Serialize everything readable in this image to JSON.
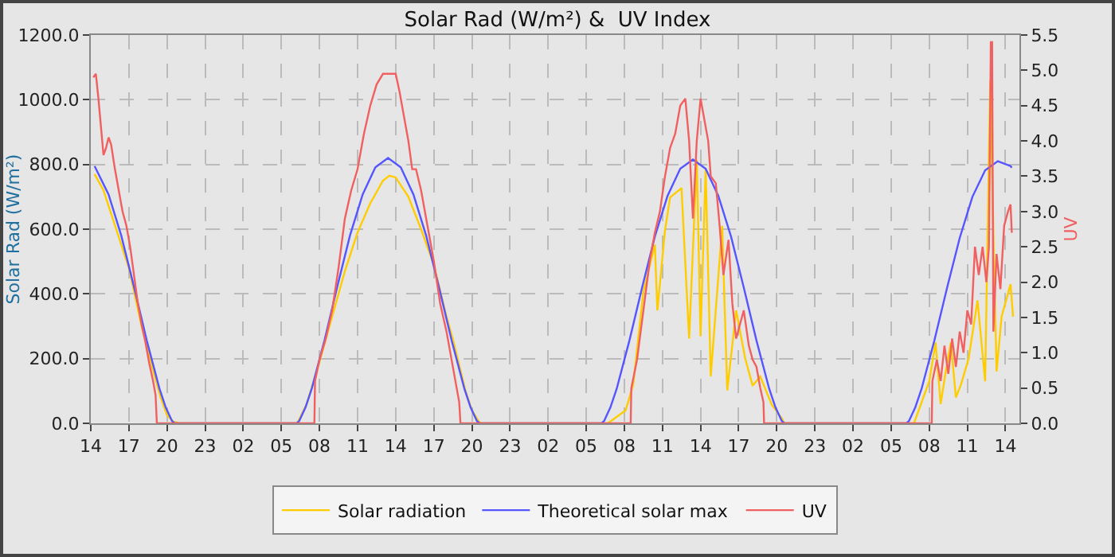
{
  "chart_data": {
    "type": "line",
    "title": "Solar Rad (W/m²) &  UV Index",
    "ylabel": "Solar Rad (W/m²)",
    "y2label": "UV",
    "xlim": [
      "--01-01T14:00",
      "--01-04T15:06"
    ],
    "xticks": [
      {
        "value": "--01-01T14:00",
        "label": "14"
      },
      {
        "value": "--01-01T17:00",
        "label": "17"
      },
      {
        "value": "--01-01T20:00",
        "label": "20"
      },
      {
        "value": "--01-01T23:00",
        "label": "23"
      },
      {
        "value": "--01-02T02:00",
        "label": "02"
      },
      {
        "value": "--01-02T05:00",
        "label": "05"
      },
      {
        "value": "--01-02T08:00",
        "label": "08"
      },
      {
        "value": "--01-02T11:00",
        "label": "11"
      },
      {
        "value": "--01-02T14:00",
        "label": "14"
      },
      {
        "value": "--01-02T17:00",
        "label": "17"
      },
      {
        "value": "--01-02T20:00",
        "label": "20"
      },
      {
        "value": "--01-02T23:00",
        "label": "23"
      },
      {
        "value": "--01-03T02:00",
        "label": "02"
      },
      {
        "value": "--01-03T05:00",
        "label": "05"
      },
      {
        "value": "--01-03T08:00",
        "label": "08"
      },
      {
        "value": "--01-03T11:00",
        "label": "11"
      },
      {
        "value": "--01-03T14:00",
        "label": "14"
      },
      {
        "value": "--01-03T17:00",
        "label": "17"
      },
      {
        "value": "--01-03T20:00",
        "label": "20"
      },
      {
        "value": "--01-03T23:00",
        "label": "23"
      },
      {
        "value": "--01-04T02:00",
        "label": "02"
      },
      {
        "value": "--01-04T05:00",
        "label": "05"
      },
      {
        "value": "--01-04T08:00",
        "label": "08"
      },
      {
        "value": "--01-04T11:00",
        "label": "11"
      },
      {
        "value": "--01-04T14:00",
        "label": "14"
      }
    ],
    "ylim": [
      0,
      1200
    ],
    "yticks": [
      {
        "value": 0,
        "label": "0.0"
      },
      {
        "value": 200,
        "label": "200.0"
      },
      {
        "value": 400,
        "label": "400.0"
      },
      {
        "value": 600,
        "label": "600.0"
      },
      {
        "value": 800,
        "label": "800.0"
      },
      {
        "value": 1000,
        "label": "1000.0"
      },
      {
        "value": 1200,
        "label": "1200.0"
      }
    ],
    "y2lim": [
      0,
      5.5
    ],
    "y2ticks": [
      {
        "value": 0,
        "label": "0.0"
      },
      {
        "value": 0.5,
        "label": "0.5"
      },
      {
        "value": 1,
        "label": "1.0"
      },
      {
        "value": 1.5,
        "label": "1.5"
      },
      {
        "value": 2,
        "label": "2.0"
      },
      {
        "value": 2.5,
        "label": "2.5"
      },
      {
        "value": 3,
        "label": "3.0"
      },
      {
        "value": 3.5,
        "label": "3.5"
      },
      {
        "value": 4,
        "label": "4.0"
      },
      {
        "value": 4.5,
        "label": "4.5"
      },
      {
        "value": 5,
        "label": "5.0"
      },
      {
        "value": 5.5,
        "label": "5.5"
      }
    ],
    "grid": true,
    "legend": "bottom",
    "series": [
      {
        "name": "Solar radiation",
        "color": "#ffcc00",
        "x": [
          "--01-01T14:18",
          "--01-01T15:00",
          "--01-01T16:00",
          "--01-01T17:00",
          "--01-01T18:00",
          "--01-01T19:00",
          "--01-01T19:30",
          "--01-01T20:00",
          "--01-01T20:30",
          "--01-01T21:00",
          "--01-02T06:15",
          "--01-02T07:00",
          "--01-02T08:00",
          "--01-02T09:00",
          "--01-02T10:00",
          "--01-02T11:00",
          "--01-02T12:00",
          "--01-02T13:00",
          "--01-02T13:30",
          "--01-02T14:00",
          "--01-02T15:00",
          "--01-02T16:00",
          "--01-02T17:00",
          "--01-02T18:00",
          "--01-02T18:30",
          "--01-02T19:00",
          "--01-02T19:30",
          "--01-02T20:00",
          "--01-02T20:30",
          "--01-02T20:42",
          "--01-03T06:42",
          "--01-03T08:06",
          "--01-03T08:42",
          "--01-03T09:30",
          "--01-03T10:24",
          "--01-03T10:36",
          "--01-03T11:12",
          "--01-03T11:36",
          "--01-03T12:30",
          "--01-03T13:06",
          "--01-03T13:42",
          "--01-03T14:00",
          "--01-03T14:24",
          "--01-03T14:48",
          "--01-03T15:42",
          "--01-03T16:06",
          "--01-03T16:48",
          "--01-03T17:30",
          "--01-03T18:06",
          "--01-03T18:42",
          "--01-03T19:36",
          "--01-03T20:24",
          "--01-03T20:36",
          "--01-04T06:48",
          "--01-04T08:00",
          "--01-04T08:30",
          "--01-04T08:54",
          "--01-04T09:18",
          "--01-04T09:42",
          "--01-04T10:06",
          "--01-04T10:30",
          "--01-04T11:06",
          "--01-04T11:48",
          "--01-04T12:24",
          "--01-04T12:48",
          "--01-04T13:06",
          "--01-04T13:18",
          "--01-04T13:42",
          "--01-04T14:24",
          "--01-04T14:36"
        ],
        "values": [
          770,
          720,
          600,
          480,
          300,
          150,
          80,
          25,
          5,
          0,
          0,
          60,
          190,
          330,
          470,
          590,
          680,
          750,
          765,
          760,
          700,
          600,
          490,
          330,
          260,
          180,
          100,
          40,
          8,
          0,
          0,
          40,
          120,
          407,
          552,
          349,
          596,
          698,
          727,
          262,
          814,
          269,
          785,
          145,
          610,
          102,
          349,
          203,
          116,
          145,
          58,
          15,
          0,
          0,
          130,
          250,
          60,
          160,
          250,
          80,
          120,
          200,
          380,
          130,
          1060,
          500,
          160,
          330,
          430,
          330
        ]
      },
      {
        "name": "Theoretical solar max",
        "color": "#5555ff",
        "x": [
          "--01-01T14:18",
          "--01-01T15:24",
          "--01-01T16:24",
          "--01-01T17:24",
          "--01-01T18:24",
          "--01-01T19:24",
          "--01-01T19:54",
          "--01-01T20:24",
          "--01-01T20:36",
          "--01-02T06:12",
          "--01-02T06:24",
          "--01-02T06:54",
          "--01-02T07:24",
          "--01-02T08:24",
          "--01-02T09:24",
          "--01-02T10:24",
          "--01-02T11:24",
          "--01-02T12:24",
          "--01-02T13:24",
          "--01-02T14:24",
          "--01-02T15:24",
          "--01-02T16:24",
          "--01-02T17:24",
          "--01-02T18:24",
          "--01-02T19:24",
          "--01-02T19:54",
          "--01-02T20:24",
          "--01-02T20:36",
          "--01-03T06:12",
          "--01-03T06:24",
          "--01-03T06:54",
          "--01-03T07:24",
          "--01-03T08:24",
          "--01-03T09:24",
          "--01-03T10:24",
          "--01-03T11:24",
          "--01-03T12:24",
          "--01-03T13:24",
          "--01-03T14:24",
          "--01-03T15:24",
          "--01-03T16:24",
          "--01-03T17:24",
          "--01-03T18:24",
          "--01-03T19:24",
          "--01-03T19:54",
          "--01-03T20:24",
          "--01-03T20:36",
          "--01-04T06:12",
          "--01-04T06:24",
          "--01-04T06:54",
          "--01-04T07:24",
          "--01-04T08:24",
          "--01-04T09:24",
          "--01-04T10:24",
          "--01-04T11:24",
          "--01-04T12:24",
          "--01-04T13:24",
          "--01-04T14:24",
          "--01-04T14:30"
        ],
        "values": [
          795,
          707,
          580,
          422,
          257,
          108,
          49,
          7,
          0,
          0,
          7,
          49,
          108,
          257,
          422,
          580,
          707,
          791,
          820,
          791,
          707,
          580,
          422,
          257,
          108,
          49,
          7,
          0,
          0,
          7,
          49,
          107,
          256,
          420,
          577,
          703,
          787,
          815,
          787,
          703,
          577,
          420,
          256,
          107,
          49,
          7,
          0,
          0,
          7,
          49,
          107,
          255,
          418,
          573,
          700,
          782,
          810,
          795,
          790
        ]
      },
      {
        "name": "UV",
        "color": "#f06060",
        "axis": "y2",
        "x": [
          "--01-01T14:12",
          "--01-01T14:24",
          "--01-01T14:36",
          "--01-01T14:48",
          "--01-01T15:00",
          "--01-01T15:12",
          "--01-01T15:24",
          "--01-01T15:36",
          "--01-01T15:54",
          "--01-01T16:12",
          "--01-01T16:30",
          "--01-01T16:48",
          "--01-01T17:06",
          "--01-01T17:24",
          "--01-01T17:42",
          "--01-01T18:00",
          "--01-01T18:18",
          "--01-01T18:36",
          "--01-01T18:54",
          "--01-01T19:06",
          "--01-01T19:12",
          "--01-02T07:36",
          "--01-02T07:39",
          "--01-02T08:00",
          "--01-02T08:30",
          "--01-02T09:00",
          "--01-02T09:30",
          "--01-02T10:00",
          "--01-02T10:30",
          "--01-02T11:00",
          "--01-02T11:30",
          "--01-02T12:00",
          "--01-02T12:30",
          "--01-02T13:00",
          "--01-02T13:30",
          "--01-02T14:00",
          "--01-02T14:18",
          "--01-02T14:36",
          "--01-02T15:00",
          "--01-02T15:18",
          "--01-02T15:36",
          "--01-02T16:00",
          "--01-02T16:30",
          "--01-02T17:00",
          "--01-02T17:30",
          "--01-02T18:00",
          "--01-02T18:24",
          "--01-02T18:48",
          "--01-02T19:00",
          "--01-02T19:06",
          "--01-03T08:30",
          "--01-03T08:33",
          "--01-03T09:00",
          "--01-03T09:30",
          "--01-03T10:00",
          "--01-03T10:24",
          "--01-03T10:48",
          "--01-03T11:12",
          "--01-03T11:36",
          "--01-03T12:00",
          "--01-03T12:24",
          "--01-03T12:48",
          "--01-03T13:06",
          "--01-03T13:24",
          "--01-03T13:42",
          "--01-03T14:00",
          "--01-03T14:18",
          "--01-03T14:36",
          "--01-03T14:48",
          "--01-03T15:12",
          "--01-03T15:30",
          "--01-03T15:48",
          "--01-03T16:12",
          "--01-03T16:30",
          "--01-03T16:48",
          "--01-03T17:06",
          "--01-03T17:24",
          "--01-03T17:48",
          "--01-03T18:06",
          "--01-03T18:24",
          "--01-03T18:42",
          "--01-03T18:57",
          "--01-03T19:00",
          "--01-04T08:12",
          "--01-04T08:15",
          "--01-04T08:36",
          "--01-04T08:54",
          "--01-04T09:12",
          "--01-04T09:30",
          "--01-04T09:48",
          "--01-04T10:06",
          "--01-04T10:24",
          "--01-04T10:42",
          "--01-04T11:00",
          "--01-04T11:18",
          "--01-04T11:36",
          "--01-04T11:54",
          "--01-04T12:12",
          "--01-04T12:30",
          "--01-04T12:42",
          "--01-04T12:51",
          "--01-04T12:57",
          "--01-04T13:03",
          "--01-04T13:18",
          "--01-04T13:36",
          "--01-04T13:54",
          "--01-04T14:12",
          "--01-04T14:24",
          "--01-04T14:30"
        ],
        "values": [
          4.9,
          4.95,
          4.6,
          4.2,
          3.8,
          3.9,
          4.05,
          3.95,
          3.6,
          3.3,
          3,
          2.8,
          2.5,
          2.1,
          1.7,
          1.4,
          1.15,
          0.85,
          0.6,
          0.4,
          0,
          0,
          0.6,
          0.9,
          1.2,
          1.6,
          2.2,
          2.9,
          3.3,
          3.6,
          4.1,
          4.5,
          4.8,
          4.95,
          4.95,
          4.95,
          4.7,
          4.4,
          4,
          3.6,
          3.6,
          3.3,
          2.8,
          2.3,
          1.7,
          1.3,
          0.9,
          0.5,
          0.3,
          0,
          0,
          0.5,
          0.9,
          1.6,
          2.3,
          2.7,
          3,
          3.5,
          3.9,
          4.1,
          4.5,
          4.6,
          4,
          2.9,
          4,
          4.6,
          4.3,
          4,
          3.5,
          3.4,
          2.8,
          2.1,
          2.6,
          1.7,
          1.2,
          1.4,
          1.6,
          1.1,
          0.9,
          0.8,
          0.5,
          0.3,
          0,
          0,
          0.6,
          0.9,
          0.6,
          1.1,
          0.7,
          1.2,
          0.8,
          1.3,
          1,
          1.6,
          1.4,
          2.5,
          2.1,
          2.5,
          2,
          2.5,
          5.4,
          5.4,
          1.3,
          2.4,
          1.9,
          2.8,
          3,
          3.1,
          2.7
        ]
      }
    ]
  }
}
